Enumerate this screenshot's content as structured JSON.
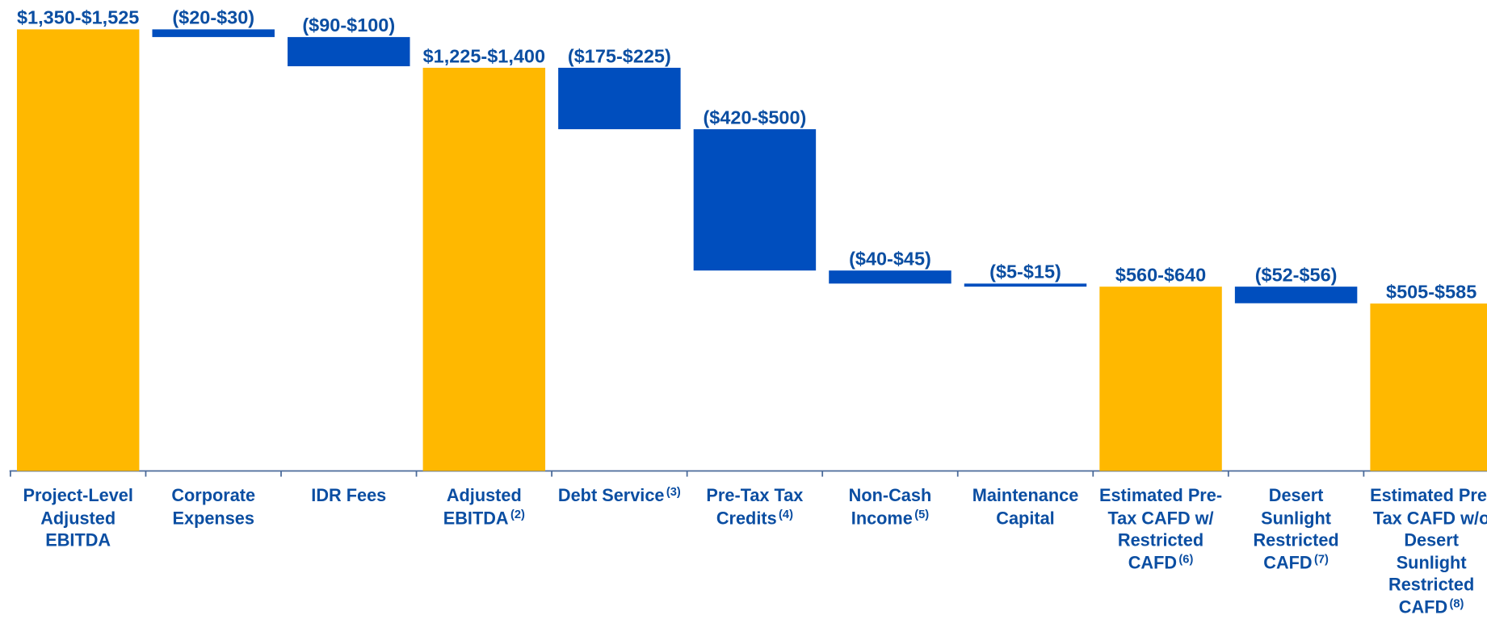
{
  "chart_data": {
    "type": "waterfall",
    "categories": [
      "Project-Level Adjusted EBITDA",
      "Corporate Expenses",
      "IDR Fees",
      "Adjusted EBITDA",
      "Debt Service",
      "Pre-Tax Tax Credits",
      "Non-Cash Income",
      "Maintenance Capital",
      "Estimated Pre-Tax CAFD w/ Restricted CAFD",
      "Desert Sunlight Restricted CAFD",
      "Estimated Pre-Tax CAFD w/o Desert Sunlight Restricted CAFD"
    ],
    "category_notes": [
      null,
      null,
      null,
      "(2)",
      "(3)",
      "(4)",
      "(5)",
      null,
      "(6)",
      "(7)",
      "(8)"
    ],
    "values": [
      1437.5,
      -25,
      -95,
      1312.5,
      -200,
      -460,
      -42.5,
      -10,
      600,
      -54,
      545
    ],
    "value_labels": [
      "$1,350-$1,525",
      "($20-$30)",
      "($90-$100)",
      "$1,225-$1,400",
      "($175-$225)",
      "($420-$500)",
      "($40-$45)",
      "($5-$15)",
      "$560-$640",
      "($52-$56)",
      "$505-$585"
    ],
    "totals": [
      true,
      false,
      false,
      true,
      false,
      false,
      false,
      false,
      true,
      false,
      true
    ],
    "colors": {
      "total": "#FFB800",
      "decrease": "#004EBE"
    }
  }
}
